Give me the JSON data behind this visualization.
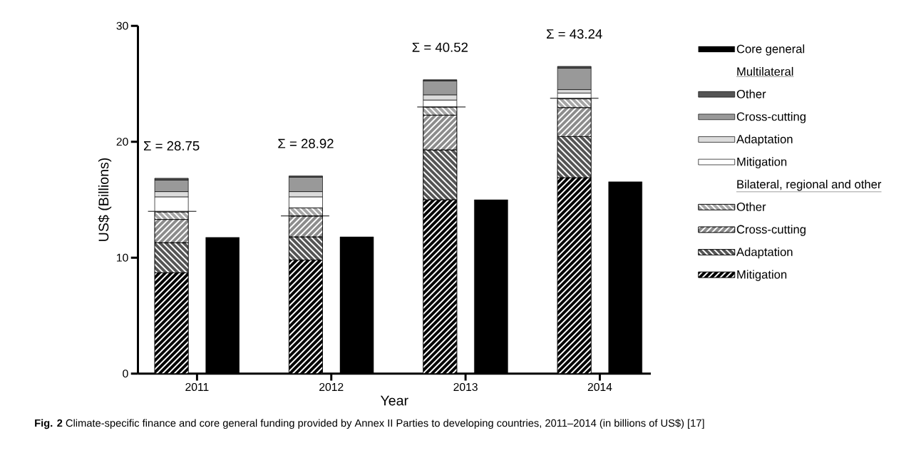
{
  "chart_data": {
    "type": "bar",
    "xlabel": "Year",
    "ylabel": "US$ (Billions)",
    "series": [
      {
        "name": "Mitigation",
        "color": "#000000",
        "x": [
          2010.81,
          2011.81,
          2012.81,
          2013.81
        ],
        "base": [
          0,
          0,
          0,
          0
        ],
        "values": [
          8.7,
          9.8,
          15.0,
          16.9
        ]
      },
      {
        "name": "Adaptation",
        "color": "#555555",
        "x": [
          2010.81,
          2011.81,
          2012.81,
          2013.81
        ],
        "base": [
          8.7,
          9.8,
          15.0,
          16.9
        ],
        "values": [
          2.6,
          2.0,
          4.3,
          3.55
        ]
      },
      {
        "name": "Cross-cutting",
        "color": "#8c8c8c",
        "x": [
          2010.81,
          2011.81,
          2012.81,
          2013.81
        ],
        "base": [
          11.3,
          11.8,
          19.3,
          20.45
        ],
        "values": [
          2.0,
          1.8,
          3.0,
          2.5
        ]
      },
      {
        "name": "Other",
        "color": "#a6a6a6",
        "x": [
          2010.81,
          2011.81,
          2012.81,
          2013.81
        ],
        "base": [
          13.3,
          13.6,
          22.3,
          22.95
        ],
        "values": [
          0.65,
          0.7,
          0.7,
          0.75
        ]
      },
      {
        "name": "Mitigation",
        "color": "#ffffff",
        "x": [
          2010.81,
          2011.81,
          2012.81,
          2013.81
        ],
        "base": [
          13.95,
          14.3,
          23.0,
          23.7
        ],
        "values": [
          1.3,
          0.95,
          0.6,
          0.5
        ]
      },
      {
        "name": "Adaptation",
        "color": "#dcdcdc",
        "x": [
          2010.81,
          2011.81,
          2012.81,
          2013.81
        ],
        "base": [
          15.25,
          15.25,
          23.6,
          24.2
        ],
        "values": [
          0.45,
          0.45,
          0.45,
          0.3
        ]
      },
      {
        "name": "Cross-cutting",
        "color": "#999999",
        "x": [
          2010.81,
          2011.81,
          2012.81,
          2013.81
        ],
        "base": [
          15.7,
          15.7,
          24.05,
          24.5
        ],
        "values": [
          1.0,
          1.25,
          1.2,
          1.85
        ]
      },
      {
        "name": "Other",
        "color": "#555555",
        "x": [
          2010.81,
          2011.81,
          2012.81,
          2013.81
        ],
        "base": [
          16.7,
          16.95,
          25.25,
          26.35
        ],
        "values": [
          0.15,
          0.1,
          0.1,
          0.15
        ]
      },
      {
        "name": "Core general",
        "color": "#000000",
        "x": [
          2011.19,
          2012.19,
          2013.19,
          2014.19
        ],
        "base": [
          0,
          0,
          0,
          0
        ],
        "values": [
          11.75,
          11.8,
          15.0,
          16.55
        ]
      },
      {
        "type": "line",
        "color": "#000000",
        "x": [
          2010.635,
          2010.995,
          2011.3,
          2011.625,
          2011.985,
          2012.3,
          2012.64,
          2013.0,
          2013.3,
          2013.63,
          2013.99
        ],
        "values": [
          14.0,
          14.0,
          null,
          13.6,
          13.6,
          null,
          23.0,
          23.0,
          null,
          23.75,
          23.75
        ]
      }
    ],
    "xlim": [
      2010.56,
      2014.38
    ],
    "xticks": [
      2011,
      2012,
      2013,
      2014
    ],
    "ylim": [
      0,
      30
    ],
    "yticks": [
      0,
      10,
      20,
      30
    ],
    "legend": "right",
    "annotations": [
      "Multilateral",
      "Bilateral, regional and other",
      "Σ = 28.75",
      "Σ = 28.92",
      "Σ = 40.52",
      "Σ = 43.24",
      "**Fig. 2**  Climate-specific finance and core general funding provided by Annex II Parties to developing countries, 2011–2014 (in billions of US$) [17]"
    ]
  }
}
